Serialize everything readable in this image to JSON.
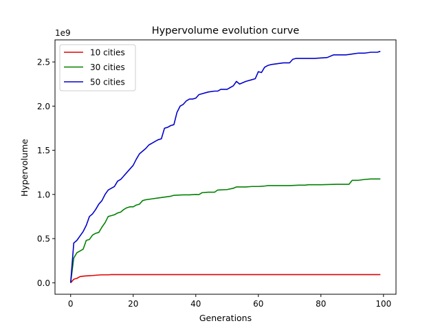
{
  "chart_data": {
    "type": "line",
    "title": "Hypervolume evolution curve",
    "xlabel": "Generations",
    "ylabel": "Hypervolume",
    "y_multiplier_label": "1e9",
    "xlim": [
      -5,
      104
    ],
    "ylim": [
      -0.13,
      2.75
    ],
    "x_ticks": [
      0,
      20,
      40,
      60,
      80,
      100
    ],
    "x_tick_labels": [
      "0",
      "20",
      "40",
      "60",
      "80",
      "100"
    ],
    "y_ticks": [
      0.0,
      0.5,
      1.0,
      1.5,
      2.0,
      2.5
    ],
    "y_tick_labels": [
      "0.0",
      "0.5",
      "1.0",
      "1.5",
      "2.0",
      "2.5"
    ],
    "grid": false,
    "legend_position": "upper-left",
    "series": [
      {
        "name": "10 cities",
        "color": "#e00000",
        "x": [
          0,
          1,
          2,
          3,
          4,
          5,
          6,
          7,
          8,
          9,
          10,
          11,
          12,
          13,
          14,
          20,
          40,
          60,
          80,
          99
        ],
        "y": [
          0.0,
          0.04,
          0.05,
          0.07,
          0.075,
          0.078,
          0.08,
          0.082,
          0.085,
          0.088,
          0.09,
          0.09,
          0.09,
          0.092,
          0.092,
          0.092,
          0.092,
          0.092,
          0.092,
          0.092
        ]
      },
      {
        "name": "30 cities",
        "color": "#008000",
        "x": [
          0,
          1,
          2,
          3,
          4,
          5,
          6,
          7,
          8,
          9,
          10,
          11,
          12,
          13,
          14,
          15,
          16,
          17,
          18,
          19,
          20,
          21,
          22,
          23,
          24,
          26,
          28,
          30,
          32,
          33,
          36,
          38,
          40,
          41,
          42,
          44,
          46,
          47,
          50,
          52,
          53,
          56,
          58,
          60,
          62,
          63,
          70,
          73,
          75,
          76,
          80,
          85,
          89,
          90,
          92,
          94,
          96,
          99
        ],
        "y": [
          0.0,
          0.28,
          0.34,
          0.36,
          0.38,
          0.48,
          0.49,
          0.54,
          0.56,
          0.57,
          0.63,
          0.68,
          0.75,
          0.76,
          0.77,
          0.79,
          0.8,
          0.83,
          0.85,
          0.86,
          0.86,
          0.88,
          0.89,
          0.93,
          0.94,
          0.95,
          0.96,
          0.97,
          0.98,
          0.99,
          0.995,
          0.995,
          1.0,
          0.998,
          1.02,
          1.025,
          1.025,
          1.05,
          1.055,
          1.07,
          1.085,
          1.085,
          1.09,
          1.09,
          1.095,
          1.1,
          1.1,
          1.105,
          1.105,
          1.11,
          1.11,
          1.115,
          1.115,
          1.16,
          1.16,
          1.17,
          1.175,
          1.175
        ]
      },
      {
        "name": "50 cities",
        "color": "#0000cc",
        "x": [
          0,
          1,
          2,
          3,
          4,
          5,
          6,
          7,
          8,
          9,
          10,
          11,
          12,
          13,
          14,
          15,
          16,
          17,
          18,
          19,
          20,
          21,
          22,
          23,
          24,
          25,
          26,
          27,
          28,
          29,
          30,
          31,
          32,
          33,
          34,
          35,
          36,
          37,
          38,
          39,
          40,
          41,
          42,
          43,
          44,
          46,
          47,
          48,
          50,
          51,
          52,
          53,
          54,
          56,
          58,
          59,
          60,
          61,
          62,
          63,
          64,
          66,
          68,
          70,
          71,
          72,
          73,
          74,
          78,
          82,
          84,
          86,
          88,
          90,
          92,
          94,
          96,
          98,
          99
        ],
        "y": [
          0.0,
          0.45,
          0.48,
          0.53,
          0.58,
          0.65,
          0.75,
          0.78,
          0.83,
          0.89,
          0.93,
          1.0,
          1.05,
          1.07,
          1.09,
          1.15,
          1.17,
          1.21,
          1.25,
          1.29,
          1.33,
          1.4,
          1.46,
          1.49,
          1.52,
          1.56,
          1.58,
          1.6,
          1.62,
          1.63,
          1.75,
          1.76,
          1.78,
          1.79,
          1.93,
          2.0,
          2.02,
          2.06,
          2.08,
          2.08,
          2.09,
          2.13,
          2.14,
          2.15,
          2.16,
          2.17,
          2.17,
          2.19,
          2.19,
          2.21,
          2.23,
          2.28,
          2.25,
          2.28,
          2.3,
          2.31,
          2.39,
          2.38,
          2.44,
          2.46,
          2.47,
          2.48,
          2.49,
          2.49,
          2.53,
          2.54,
          2.54,
          2.54,
          2.54,
          2.55,
          2.58,
          2.58,
          2.58,
          2.59,
          2.6,
          2.6,
          2.61,
          2.61,
          2.62
        ]
      }
    ]
  }
}
